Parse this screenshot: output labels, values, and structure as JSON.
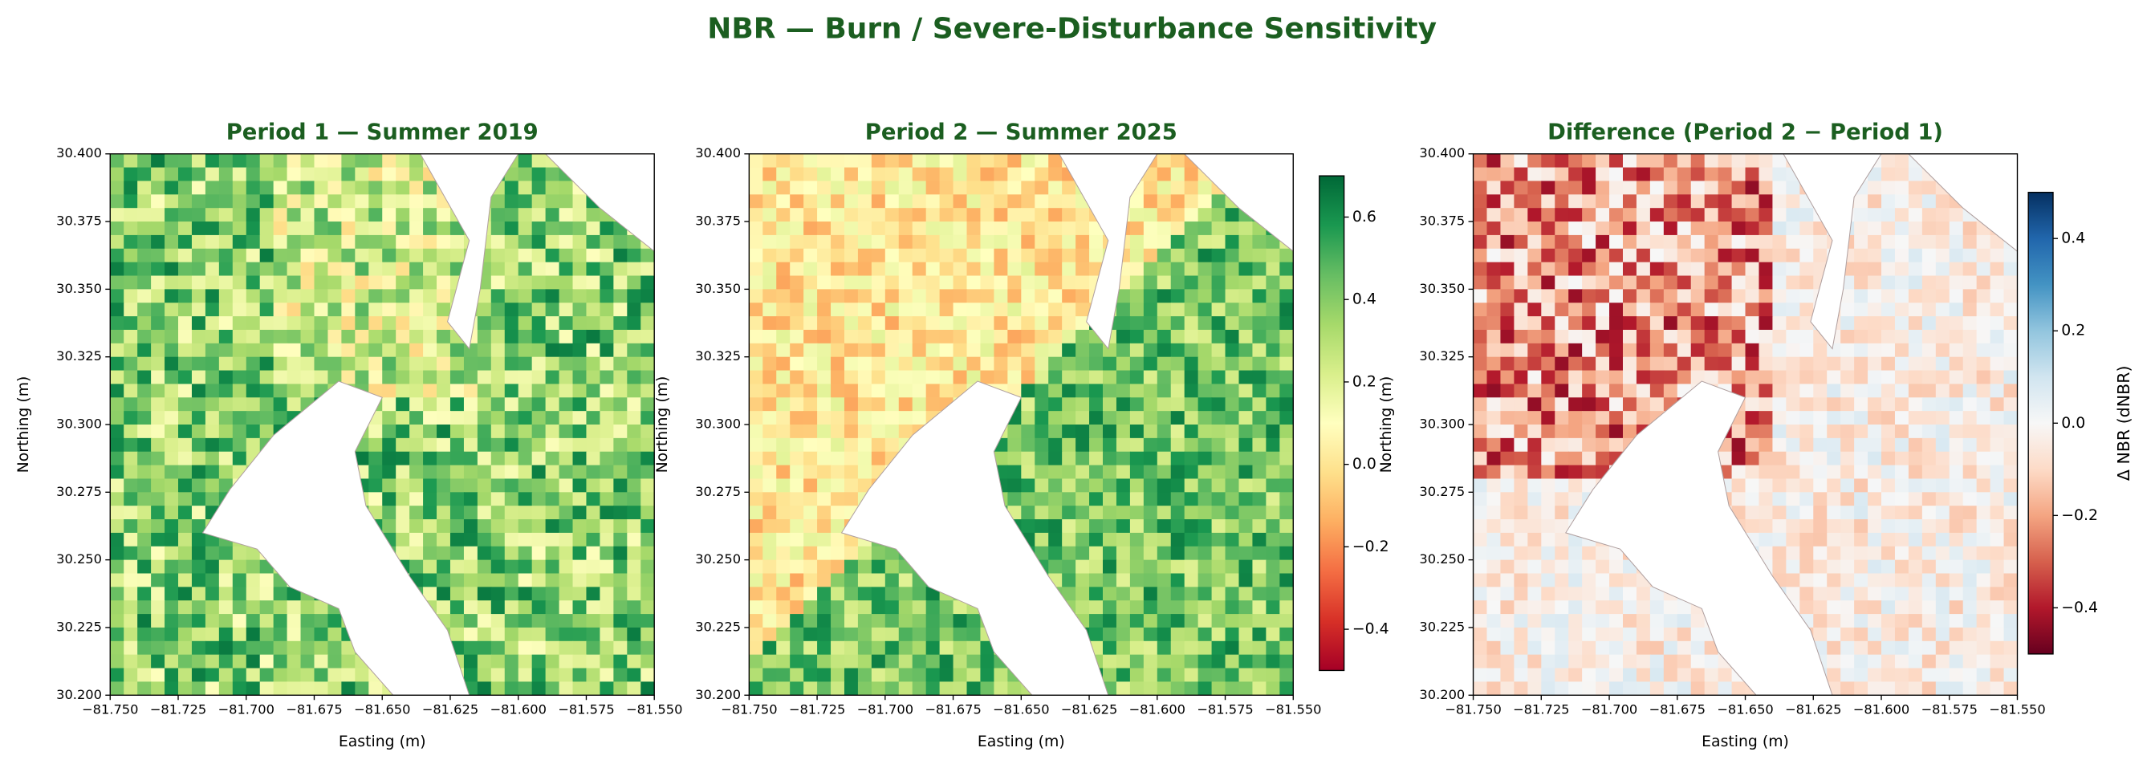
{
  "suptitle": "NBR — Burn / Severe-Disturbance Sensitivity",
  "chart_data": [
    {
      "type": "image",
      "title": "Period 1 — Summer 2019",
      "xlabel": "Easting (m)",
      "ylabel": "Northing (m)",
      "xlim": [
        -81.75,
        -81.55
      ],
      "ylim": [
        30.2,
        30.4
      ],
      "xticks": [
        {
          "value": -81.75,
          "label": "−81.750"
        },
        {
          "value": -81.725,
          "label": "−81.725"
        },
        {
          "value": -81.7,
          "label": "−81.700"
        },
        {
          "value": -81.675,
          "label": "−81.675"
        },
        {
          "value": -81.65,
          "label": "−81.650"
        },
        {
          "value": -81.625,
          "label": "−81.625"
        },
        {
          "value": -81.6,
          "label": "−81.600"
        },
        {
          "value": -81.575,
          "label": "−81.575"
        },
        {
          "value": -81.55,
          "label": "−81.550"
        }
      ],
      "yticks": [
        {
          "value": 30.2,
          "label": "30.200"
        },
        {
          "value": 30.225,
          "label": "30.225"
        },
        {
          "value": 30.25,
          "label": "30.250"
        },
        {
          "value": 30.275,
          "label": "30.275"
        },
        {
          "value": 30.3,
          "label": "30.300"
        },
        {
          "value": 30.325,
          "label": "30.325"
        },
        {
          "value": 30.35,
          "label": "30.350"
        },
        {
          "value": 30.375,
          "label": "30.375"
        },
        {
          "value": 30.4,
          "label": "30.400"
        }
      ],
      "colormap": [
        "#a50026",
        "#d73027",
        "#f46d43",
        "#fdae61",
        "#fee08b",
        "#ffffbf",
        "#d9ef8b",
        "#a6d96a",
        "#66bd63",
        "#1a9850",
        "#006837"
      ],
      "clim": [
        -0.5,
        0.7
      ]
    },
    {
      "type": "image",
      "title": "Period 2 — Summer 2025",
      "xlabel": "Easting (m)",
      "ylabel": "Northing (m)",
      "xlim": [
        -81.75,
        -81.55
      ],
      "ylim": [
        30.2,
        30.4
      ],
      "xticks": [
        {
          "value": -81.75,
          "label": "−81.750"
        },
        {
          "value": -81.725,
          "label": "−81.725"
        },
        {
          "value": -81.7,
          "label": "−81.700"
        },
        {
          "value": -81.675,
          "label": "−81.675"
        },
        {
          "value": -81.65,
          "label": "−81.650"
        },
        {
          "value": -81.625,
          "label": "−81.625"
        },
        {
          "value": -81.6,
          "label": "−81.600"
        },
        {
          "value": -81.575,
          "label": "−81.575"
        },
        {
          "value": -81.55,
          "label": "−81.550"
        }
      ],
      "yticks": [
        {
          "value": 30.2,
          "label": "30.200"
        },
        {
          "value": 30.225,
          "label": "30.225"
        },
        {
          "value": 30.25,
          "label": "30.250"
        },
        {
          "value": 30.275,
          "label": "30.275"
        },
        {
          "value": 30.3,
          "label": "30.300"
        },
        {
          "value": 30.325,
          "label": "30.325"
        },
        {
          "value": 30.35,
          "label": "30.350"
        },
        {
          "value": 30.375,
          "label": "30.375"
        },
        {
          "value": 30.4,
          "label": "30.400"
        }
      ],
      "colormap": [
        "#a50026",
        "#d73027",
        "#f46d43",
        "#fdae61",
        "#fee08b",
        "#ffffbf",
        "#d9ef8b",
        "#a6d96a",
        "#66bd63",
        "#1a9850",
        "#006837"
      ],
      "clim": [
        -0.5,
        0.7
      ],
      "colorbar": {
        "ticks": [
          {
            "value": -0.4,
            "label": "−0.4"
          },
          {
            "value": -0.2,
            "label": "−0.2"
          },
          {
            "value": 0,
            "label": "0.0"
          },
          0.2,
          0.4,
          0.6
        ]
      }
    },
    {
      "type": "image",
      "title": "Difference  (Period 2 − Period 1)",
      "xlabel": "Easting (m)",
      "ylabel": "Northing (m)",
      "xlim": [
        -81.75,
        -81.55
      ],
      "ylim": [
        30.2,
        30.4
      ],
      "xticks": [
        {
          "value": -81.75,
          "label": "−81.750"
        },
        {
          "value": -81.725,
          "label": "−81.725"
        },
        {
          "value": -81.7,
          "label": "−81.700"
        },
        {
          "value": -81.675,
          "label": "−81.675"
        },
        {
          "value": -81.65,
          "label": "−81.650"
        },
        {
          "value": -81.625,
          "label": "−81.625"
        },
        {
          "value": -81.6,
          "label": "−81.600"
        },
        {
          "value": -81.575,
          "label": "−81.575"
        },
        {
          "value": -81.55,
          "label": "−81.550"
        }
      ],
      "yticks": [
        {
          "value": 30.2,
          "label": "30.200"
        },
        {
          "value": 30.225,
          "label": "30.225"
        },
        {
          "value": 30.25,
          "label": "30.250"
        },
        {
          "value": 30.275,
          "label": "30.275"
        },
        {
          "value": 30.3,
          "label": "30.300"
        },
        {
          "value": 30.325,
          "label": "30.325"
        },
        {
          "value": 30.35,
          "label": "30.350"
        },
        {
          "value": 30.375,
          "label": "30.375"
        },
        {
          "value": 30.4,
          "label": "30.400"
        }
      ],
      "colormap": [
        "#67001f",
        "#b2182b",
        "#d6604d",
        "#f4a582",
        "#fddbc7",
        "#f7f7f7",
        "#d1e5f0",
        "#92c5de",
        "#4393c3",
        "#2166ac",
        "#053061"
      ],
      "clim": [
        -0.5,
        0.5
      ],
      "colorbar": {
        "label": "Δ NBR (dNBR)",
        "ticks": [
          {
            "value": -0.4,
            "label": "−0.4"
          },
          {
            "value": -0.2,
            "label": "−0.2"
          },
          {
            "value": 0,
            "label": "0.0"
          },
          0.2,
          0.4
        ]
      }
    }
  ]
}
